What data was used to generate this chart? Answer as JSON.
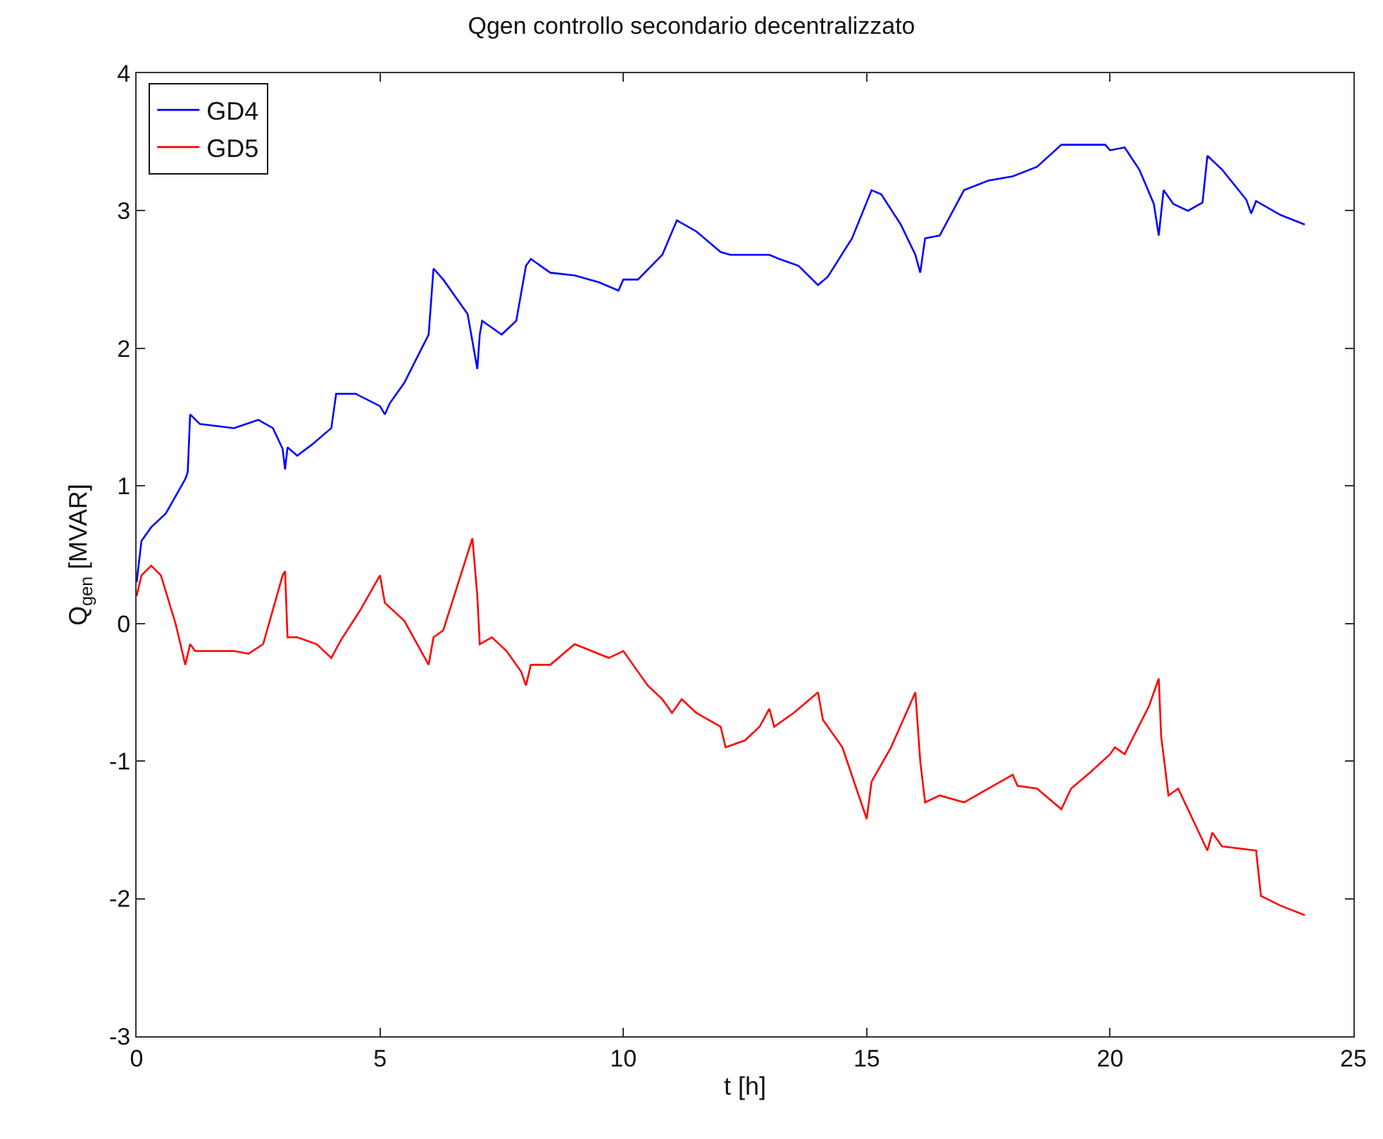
{
  "chart_data": {
    "type": "line",
    "title": "Qgen controllo secondario decentralizzato",
    "xlabel": "t [h]",
    "ylabel": "Q$_{gen}$ [MVAR]",
    "xlim": [
      0,
      25
    ],
    "xticks": [
      0,
      5,
      10,
      15,
      20,
      25
    ],
    "ylim": [
      -3,
      4
    ],
    "yticks": [
      -3,
      -2,
      -1,
      0,
      1,
      2,
      3,
      4
    ],
    "legend": "top left",
    "line_style": "solid",
    "marker": "none",
    "series": [
      {
        "name": "GD4",
        "color": "#0000ff",
        "x": [
          0,
          0.1,
          0.3,
          0.6,
          1.0,
          1.05,
          1.1,
          1.3,
          2.0,
          2.5,
          2.8,
          3.0,
          3.05,
          3.1,
          3.3,
          3.6,
          4.0,
          4.1,
          4.5,
          5.0,
          5.1,
          5.2,
          5.5,
          6.0,
          6.1,
          6.3,
          6.8,
          7.0,
          7.05,
          7.1,
          7.5,
          7.8,
          8.0,
          8.1,
          8.5,
          9.0,
          9.5,
          9.9,
          10.0,
          10.3,
          10.8,
          11.1,
          11.5,
          12.0,
          12.2,
          13.0,
          13.2,
          13.6,
          14.0,
          14.2,
          14.7,
          15.1,
          15.3,
          15.7,
          16.0,
          16.1,
          16.2,
          16.5,
          17.0,
          17.5,
          18.0,
          18.5,
          19.0,
          19.9,
          20.0,
          20.3,
          20.6,
          20.9,
          21.0,
          21.1,
          21.3,
          21.6,
          21.9,
          22.0,
          22.3,
          22.8,
          22.9,
          23.0,
          23.5,
          24.0
        ],
        "values": [
          0.3,
          0.6,
          0.7,
          0.8,
          1.05,
          1.1,
          1.52,
          1.45,
          1.42,
          1.48,
          1.42,
          1.27,
          1.12,
          1.28,
          1.22,
          1.3,
          1.42,
          1.67,
          1.67,
          1.58,
          1.52,
          1.6,
          1.75,
          2.1,
          2.58,
          2.5,
          2.25,
          1.85,
          2.1,
          2.2,
          2.1,
          2.2,
          2.6,
          2.65,
          2.55,
          2.53,
          2.48,
          2.42,
          2.5,
          2.5,
          2.68,
          2.93,
          2.85,
          2.7,
          2.68,
          2.68,
          2.65,
          2.6,
          2.46,
          2.52,
          2.8,
          3.15,
          3.12,
          2.9,
          2.68,
          2.55,
          2.8,
          2.82,
          3.15,
          3.22,
          3.25,
          3.32,
          3.48,
          3.48,
          3.44,
          3.46,
          3.3,
          3.05,
          2.82,
          3.15,
          3.05,
          3.0,
          3.06,
          3.4,
          3.3,
          3.08,
          2.98,
          3.07,
          2.97,
          2.9
        ]
      },
      {
        "name": "GD5",
        "color": "#ff0000",
        "x": [
          0,
          0.1,
          0.3,
          0.5,
          0.8,
          1.0,
          1.1,
          1.2,
          2.0,
          2.3,
          2.6,
          3.0,
          3.05,
          3.1,
          3.3,
          3.7,
          4.0,
          4.2,
          4.6,
          5.0,
          5.1,
          5.5,
          6.0,
          6.1,
          6.3,
          6.9,
          7.0,
          7.05,
          7.3,
          7.6,
          7.9,
          8.0,
          8.1,
          8.5,
          9.0,
          9.7,
          10.0,
          10.5,
          10.8,
          11.0,
          11.2,
          11.5,
          12.0,
          12.1,
          12.5,
          12.8,
          13.0,
          13.1,
          13.5,
          14.0,
          14.1,
          14.5,
          15.0,
          15.1,
          15.5,
          16.0,
          16.1,
          16.2,
          16.5,
          17.0,
          17.5,
          18.0,
          18.1,
          18.5,
          19.0,
          19.2,
          19.6,
          20.0,
          20.1,
          20.3,
          20.8,
          21.0,
          21.05,
          21.2,
          21.4,
          21.6,
          22.0,
          22.1,
          22.3,
          23.0,
          23.1,
          23.5,
          24.0
        ],
        "values": [
          0.2,
          0.35,
          0.42,
          0.35,
          0.0,
          -0.3,
          -0.15,
          -0.2,
          -0.2,
          -0.22,
          -0.15,
          0.35,
          0.38,
          -0.1,
          -0.1,
          -0.15,
          -0.25,
          -0.12,
          0.1,
          0.35,
          0.15,
          0.02,
          -0.3,
          -0.1,
          -0.05,
          0.62,
          0.2,
          -0.15,
          -0.1,
          -0.2,
          -0.35,
          -0.45,
          -0.3,
          -0.3,
          -0.15,
          -0.25,
          -0.2,
          -0.45,
          -0.55,
          -0.65,
          -0.55,
          -0.65,
          -0.75,
          -0.9,
          -0.85,
          -0.75,
          -0.62,
          -0.75,
          -0.65,
          -0.5,
          -0.7,
          -0.9,
          -1.42,
          -1.15,
          -0.9,
          -0.5,
          -1.0,
          -1.3,
          -1.25,
          -1.3,
          -1.2,
          -1.1,
          -1.18,
          -1.2,
          -1.35,
          -1.2,
          -1.08,
          -0.95,
          -0.9,
          -0.95,
          -0.6,
          -0.4,
          -0.82,
          -1.25,
          -1.2,
          -1.35,
          -1.65,
          -1.52,
          -1.62,
          -1.65,
          -1.98,
          -2.05,
          -2.12
        ]
      }
    ]
  }
}
